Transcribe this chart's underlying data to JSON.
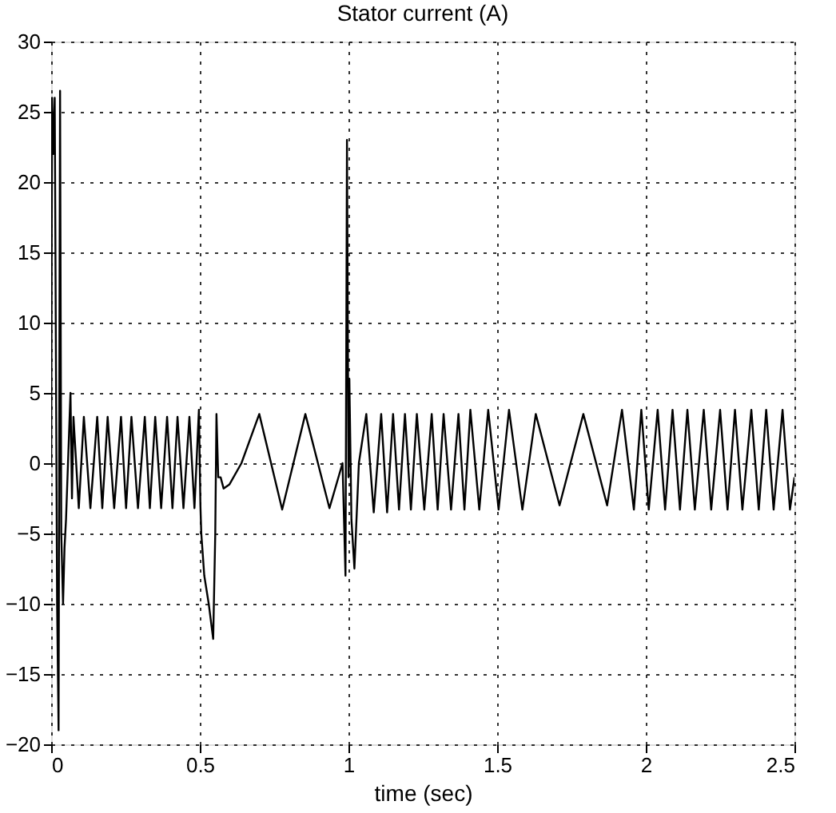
{
  "chart_data": {
    "type": "line",
    "title": "Stator current (A)",
    "xlabel": "time (sec)",
    "xlim": [
      0,
      2.5
    ],
    "xticks": [
      0,
      0.5,
      1,
      1.5,
      2,
      2.5
    ],
    "ylim": [
      -20,
      30
    ],
    "yticks": [
      -20,
      -15,
      -10,
      -5,
      0,
      5,
      10,
      15,
      20,
      25,
      30
    ],
    "grid": true,
    "line_style": "solid",
    "marker": "none",
    "series": [
      {
        "color": "#000000",
        "x": [
          0,
          0.003,
          0.008,
          0.012,
          0.016,
          0.02,
          0.025,
          0.028,
          0.03,
          0.034,
          0.04,
          0.045,
          0.05,
          0.06,
          0.065,
          0.07,
          0.075,
          0.093,
          0.11,
          0.132,
          0.155,
          0.172,
          0.19,
          0.212,
          0.235,
          0.252,
          0.27,
          0.292,
          0.315,
          0.332,
          0.35,
          0.37,
          0.39,
          0.408,
          0.425,
          0.445,
          0.465,
          0.482,
          0.497,
          0.502,
          0.505,
          0.515,
          0.53,
          0.545,
          0.552,
          0.556,
          0.562,
          0.57,
          0.58,
          0.6,
          0.64,
          0.7,
          0.777,
          0.855,
          0.936,
          0.98,
          0.99,
          0.995,
          1.0,
          1.003,
          1.01,
          1.02,
          1.035,
          1.06,
          1.085,
          1.11,
          1.13,
          1.15,
          1.17,
          1.19,
          1.21,
          1.23,
          1.255,
          1.28,
          1.3,
          1.32,
          1.345,
          1.37,
          1.39,
          1.41,
          1.44,
          1.47,
          1.505,
          1.54,
          1.585,
          1.63,
          1.71,
          1.79,
          1.87,
          1.92,
          1.96,
          1.985,
          2.01,
          2.04,
          2.065,
          2.09,
          2.115,
          2.14,
          2.165,
          2.195,
          2.22,
          2.25,
          2.275,
          2.3,
          2.325,
          2.355,
          2.38,
          2.405,
          2.43,
          2.46,
          2.485,
          2.5
        ],
        "values": [
          0,
          26,
          22,
          26,
          8,
          -10,
          -19,
          10,
          26.5,
          -5,
          -10,
          -6,
          -4,
          2,
          5,
          -2.5,
          3.3,
          -3.2,
          3.3,
          -3.2,
          3.3,
          -3.2,
          3.3,
          -3.2,
          3.3,
          -3.2,
          3.3,
          -3.2,
          3.3,
          -3.2,
          3.3,
          -3.2,
          3.3,
          -3.2,
          3.3,
          -3.2,
          3.3,
          -3.2,
          3.8,
          -3,
          -5,
          -8,
          -10,
          -12.5,
          -5,
          3.5,
          -1,
          -1,
          -1.8,
          -1.5,
          0,
          3.5,
          -3.3,
          3.5,
          -3.2,
          0,
          -8,
          23,
          -1,
          6,
          -4,
          -7.5,
          0,
          3.5,
          -3.5,
          3.5,
          -3.5,
          3.5,
          -3.3,
          3.5,
          -3.3,
          3.5,
          -3.3,
          3.5,
          -3.3,
          3.5,
          -3.3,
          3.5,
          -3.3,
          3.8,
          -3.3,
          3.8,
          -3.3,
          3.8,
          -3.3,
          3.5,
          -3,
          3.5,
          -3,
          3.8,
          -3.3,
          3.8,
          -3.3,
          3.8,
          -3.3,
          3.8,
          -3.3,
          3.8,
          -3.3,
          3.8,
          -3.3,
          3.8,
          -3.3,
          3.8,
          -3.3,
          3.8,
          -3.3,
          3.8,
          -3.3,
          3.8,
          -3.3,
          -1
        ]
      }
    ]
  }
}
